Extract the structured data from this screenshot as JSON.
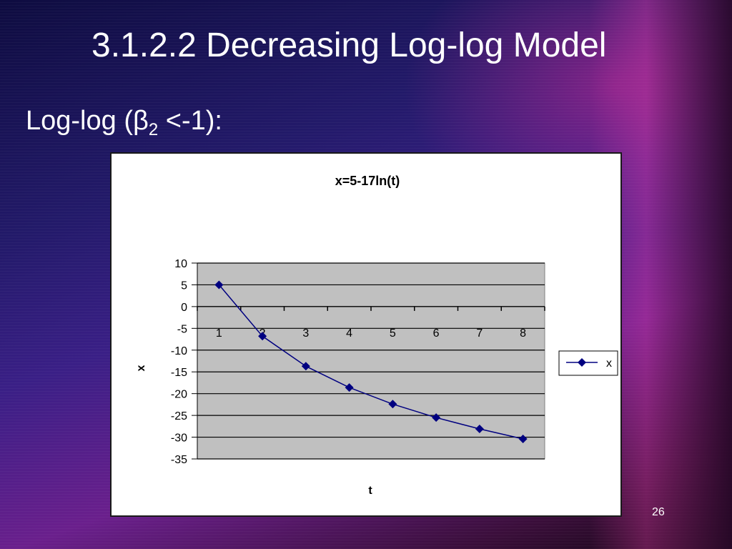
{
  "slide": {
    "title": "3.1.2.2 Decreasing Log-log Model",
    "subtitle_prefix": "Log-log (β",
    "subtitle_sub": "2",
    "subtitle_suffix": "<-1):",
    "slide_number": "26"
  },
  "chart_data": {
    "type": "line",
    "title": "x=5-17ln(t)",
    "xlabel": "t",
    "ylabel": "x",
    "categories": [
      "1",
      "2",
      "3",
      "4",
      "5",
      "6",
      "7",
      "8"
    ],
    "series": [
      {
        "name": "x",
        "values": [
          5,
          -6.8,
          -13.7,
          -18.6,
          -22.4,
          -25.5,
          -28.1,
          -30.4
        ]
      }
    ],
    "ylim": [
      -35,
      10
    ],
    "yticks": [
      "10",
      "5",
      "0",
      "-5",
      "-10",
      "-15",
      "-20",
      "-25",
      "-30",
      "-35"
    ],
    "grid": true,
    "legend": "right",
    "colors": {
      "line": "#000080",
      "plot_bg": "#c0c0c0",
      "grid": "#000000"
    }
  }
}
